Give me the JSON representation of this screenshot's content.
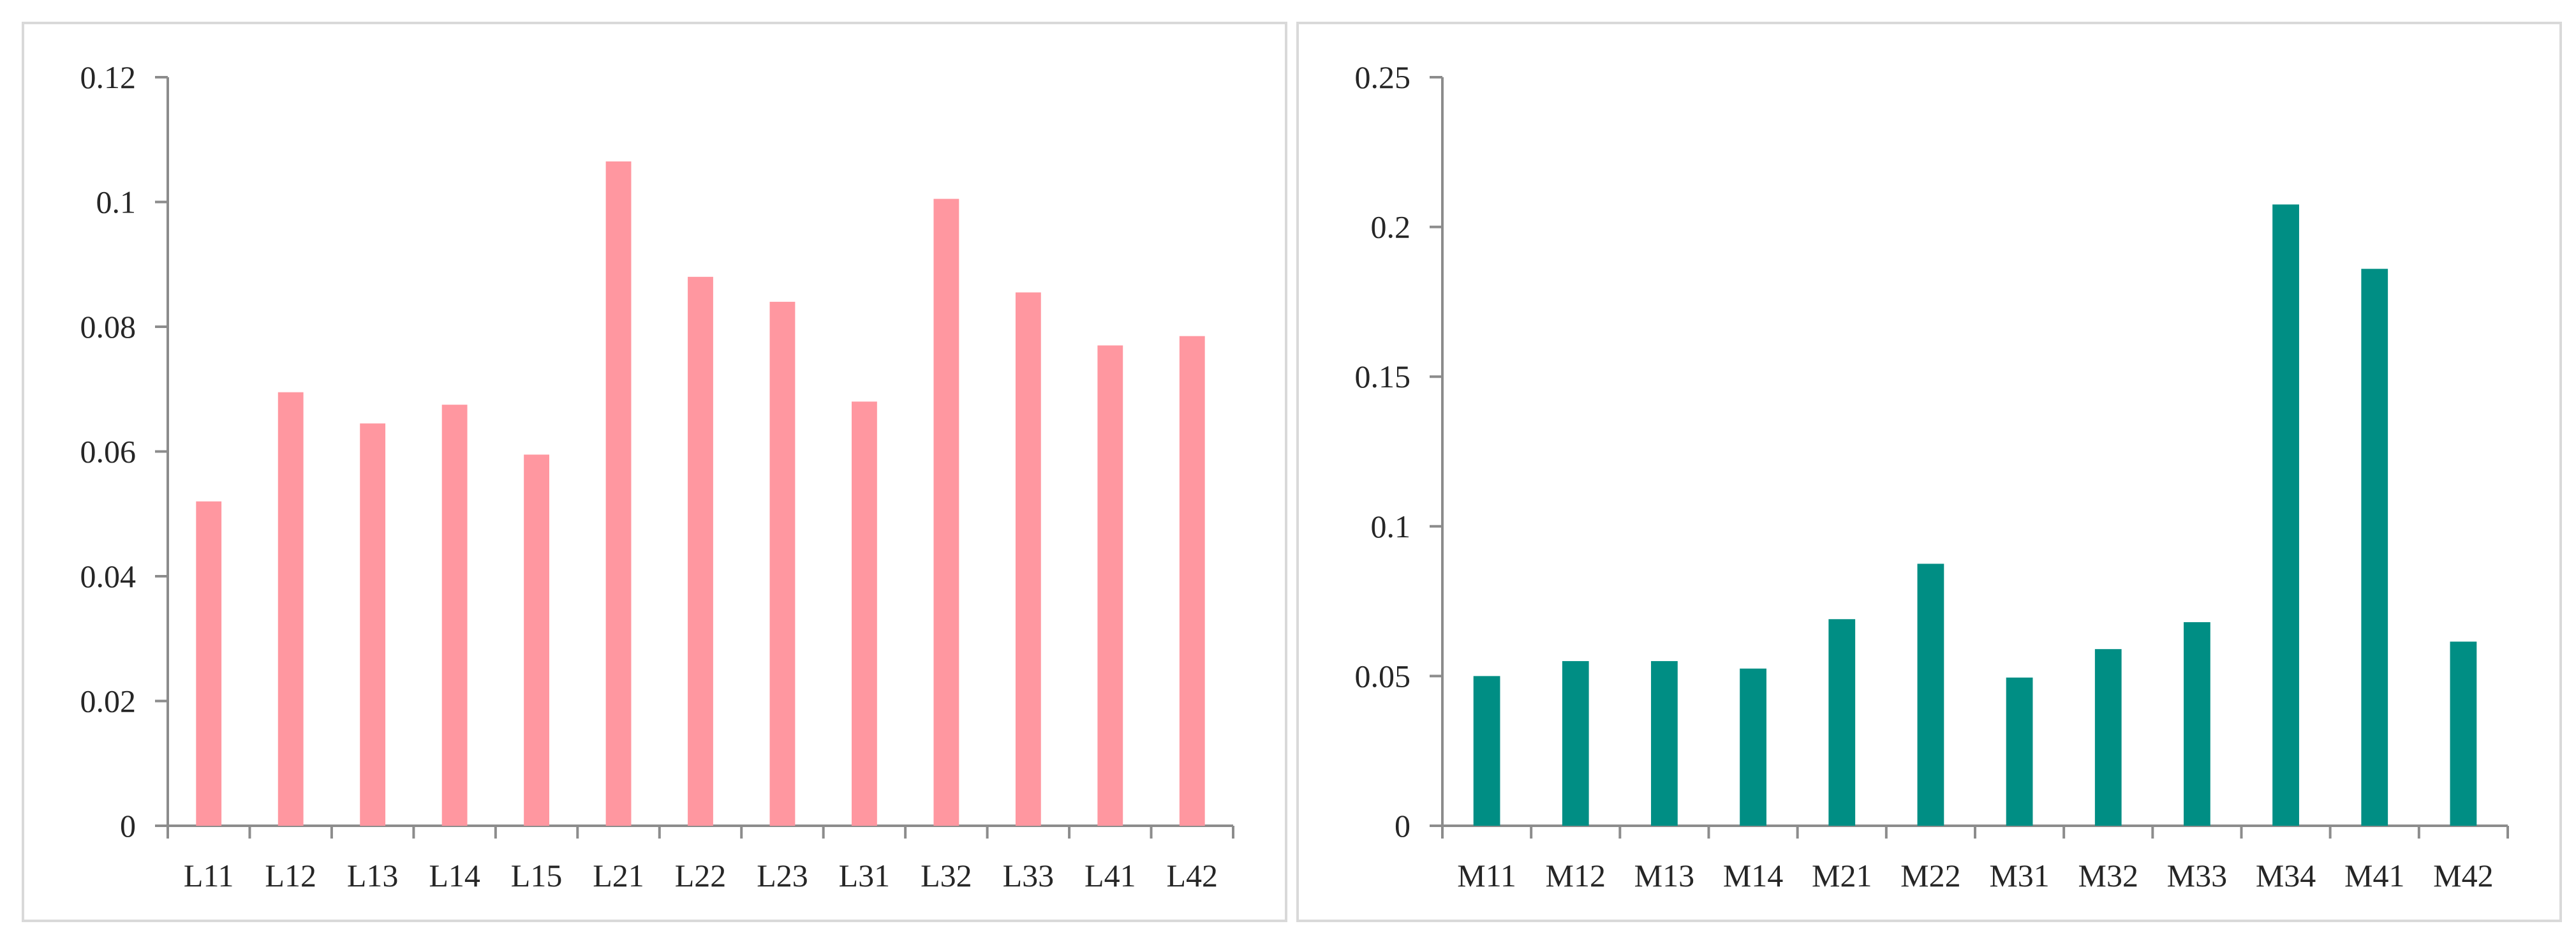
{
  "chart_data": [
    {
      "type": "bar",
      "categories": [
        "L11",
        "L12",
        "L13",
        "L14",
        "L15",
        "L21",
        "L22",
        "L23",
        "L31",
        "L32",
        "L33",
        "L41",
        "L42"
      ],
      "values": [
        0.052,
        0.0695,
        0.0645,
        0.0675,
        0.0595,
        0.1065,
        0.088,
        0.084,
        0.068,
        0.1005,
        0.0855,
        0.077,
        0.0785
      ],
      "ylim": [
        0,
        0.12
      ],
      "yticks": [
        0,
        0.02,
        0.04,
        0.06,
        0.08,
        0.1,
        0.12
      ],
      "ytick_labels": [
        "0",
        "0.02",
        "0.04",
        "0.06",
        "0.08",
        "0.1",
        "0.12"
      ],
      "color": "#ff97a0",
      "grid": false,
      "legend": "none"
    },
    {
      "type": "bar",
      "categories": [
        "M11",
        "M12",
        "M13",
        "M14",
        "M21",
        "M22",
        "M31",
        "M32",
        "M33",
        "M34",
        "M41",
        "M42"
      ],
      "values": [
        0.05,
        0.055,
        0.055,
        0.0525,
        0.069,
        0.0875,
        0.0495,
        0.059,
        0.068,
        0.2075,
        0.186,
        0.0615
      ],
      "ylim": [
        0,
        0.25
      ],
      "yticks": [
        0,
        0.05,
        0.1,
        0.15,
        0.2,
        0.25
      ],
      "ytick_labels": [
        "0",
        "0.05",
        "0.1",
        "0.15",
        "0.2",
        "0.25"
      ],
      "color": "#008e84",
      "grid": false,
      "legend": "none"
    }
  ]
}
